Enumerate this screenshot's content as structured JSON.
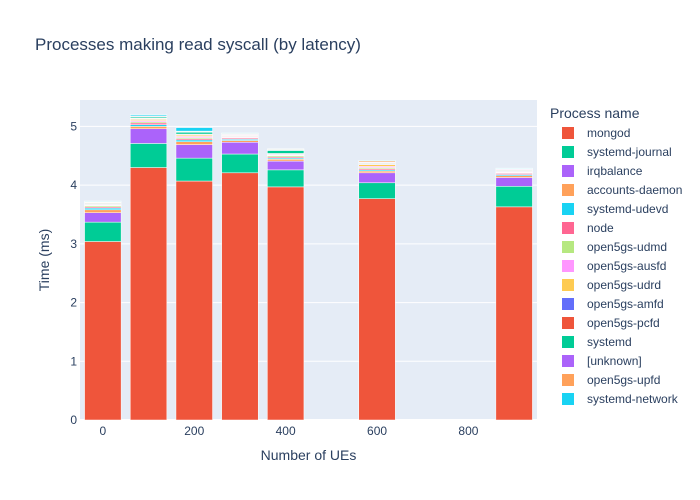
{
  "chart_data": {
    "type": "bar",
    "stacked": true,
    "title": "Processes making read syscall (by latency)",
    "xlabel": "Number of UEs",
    "ylabel": "Time (ms)",
    "xlim": [
      -50,
      950
    ],
    "ylim": [
      0,
      5.45
    ],
    "x_ticks": [
      0,
      200,
      400,
      600,
      800
    ],
    "y_ticks": [
      0,
      1,
      2,
      3,
      4,
      5
    ],
    "grid": true,
    "legend_title": "Process name",
    "legend_position": "right",
    "x": [
      0,
      100,
      200,
      300,
      400,
      600,
      900
    ],
    "series": [
      {
        "name": "mongod",
        "color": "#EF553B",
        "values": [
          3.04,
          4.3,
          4.07,
          4.21,
          3.97,
          3.77,
          3.63
        ]
      },
      {
        "name": "systemd-journal",
        "color": "#00CC96",
        "values": [
          0.33,
          0.41,
          0.39,
          0.32,
          0.29,
          0.27,
          0.35
        ]
      },
      {
        "name": "irqbalance",
        "color": "#AB63FA",
        "values": [
          0.16,
          0.25,
          0.23,
          0.2,
          0.15,
          0.17,
          0.15
        ]
      },
      {
        "name": "accounts-daemon",
        "color": "#FFA15A",
        "values": [
          0.05,
          0.04,
          0.05,
          0.03,
          0.03,
          0.03,
          0.03
        ]
      },
      {
        "name": "systemd-udevd",
        "color": "#19D3F3",
        "values": [
          0.03,
          0.03,
          0.03,
          0.02,
          0.02,
          0.02,
          0.02
        ]
      },
      {
        "name": "node",
        "color": "#FF6692",
        "values": [
          0.02,
          0.03,
          0.02,
          0.02,
          0.02,
          0.02,
          0.02
        ]
      },
      {
        "name": "open5gs-udmd",
        "color": "#B6E880",
        "values": [
          0.02,
          0.02,
          0.02,
          0.01,
          0.02,
          0.02,
          0.01
        ]
      },
      {
        "name": "open5gs-ausfd",
        "color": "#FF97FF",
        "values": [
          0.01,
          0.02,
          0.02,
          0.01,
          0.01,
          0.02,
          0.01
        ]
      },
      {
        "name": "open5gs-udrd",
        "color": "#FECB52",
        "values": [
          0.01,
          0.02,
          0.02,
          0.01,
          0.01,
          0.03,
          0.01
        ]
      },
      {
        "name": "open5gs-amfd",
        "color": "#636EFA",
        "values": [
          0.01,
          0.01,
          0.01,
          0.01,
          0.01,
          0.01,
          0.01
        ]
      },
      {
        "name": "open5gs-pcfd",
        "color": "#EF553B",
        "values": [
          0.01,
          0.01,
          0.01,
          0.01,
          0.01,
          0.01,
          0.01
        ]
      },
      {
        "name": "systemd",
        "color": "#00CC96",
        "values": [
          0.01,
          0.02,
          0.03,
          0.01,
          0.05,
          0.01,
          0.01
        ]
      },
      {
        "name": "[unknown]",
        "color": "#AB63FA",
        "values": [
          0.01,
          0.01,
          0.01,
          0.01,
          0.01,
          0.01,
          0.01
        ]
      },
      {
        "name": "open5gs-upfd",
        "color": "#FFA15A",
        "values": [
          0.01,
          0.01,
          0.01,
          0.01,
          0.01,
          0.02,
          0.01
        ]
      },
      {
        "name": "systemd-network",
        "color": "#19D3F3",
        "values": [
          0.01,
          0.02,
          0.06,
          0.01,
          0.01,
          0.01,
          0.01
        ]
      }
    ]
  }
}
